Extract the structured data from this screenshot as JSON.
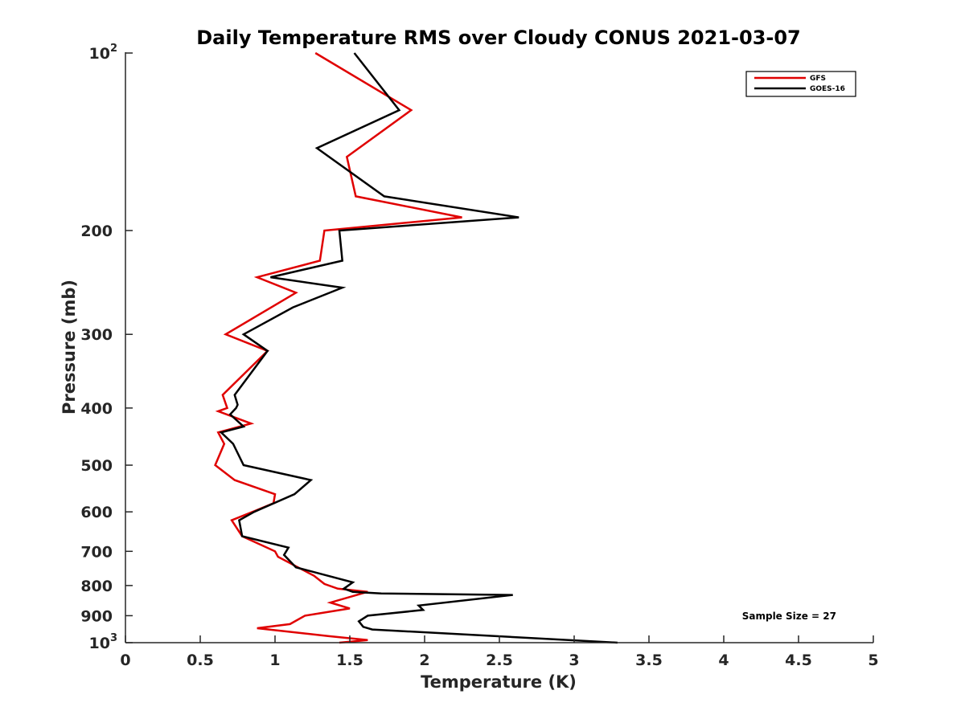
{
  "chart_data": {
    "type": "line",
    "title": "Daily Temperature RMS over Cloudy CONUS 2021-03-07",
    "xlabel": "Temperature (K)",
    "ylabel": "Pressure (mb)",
    "xlim": [
      0,
      5
    ],
    "ylim": [
      100,
      1000
    ],
    "y_scale": "log",
    "y_reversed": true,
    "grid": false,
    "legend_position": "top-right",
    "x_ticks": [
      "0",
      "0.5",
      "1",
      "1.5",
      "2",
      "2.5",
      "3",
      "3.5",
      "4",
      "4.5",
      "5"
    ],
    "y_ticks": [
      {
        "value": 100,
        "base": "10",
        "exp": "2"
      },
      {
        "value": 200,
        "label": "200"
      },
      {
        "value": 300,
        "label": "300"
      },
      {
        "value": 400,
        "label": "400"
      },
      {
        "value": 500,
        "label": "500"
      },
      {
        "value": 600,
        "label": "600"
      },
      {
        "value": 700,
        "label": "700"
      },
      {
        "value": 800,
        "label": "800"
      },
      {
        "value": 900,
        "label": "900"
      },
      {
        "value": 1000,
        "base": "10",
        "exp": "3"
      }
    ],
    "annotation": "Sample Size = 27",
    "series": [
      {
        "name": "GFS",
        "color": "#e00000",
        "points": [
          [
            1.27,
            100
          ],
          [
            1.91,
            125
          ],
          [
            1.48,
            150
          ],
          [
            1.54,
            175
          ],
          [
            2.25,
            190
          ],
          [
            1.33,
            200
          ],
          [
            1.3,
            225
          ],
          [
            0.88,
            240
          ],
          [
            1.14,
            255
          ],
          [
            0.67,
            300
          ],
          [
            0.95,
            320
          ],
          [
            0.65,
            380
          ],
          [
            0.68,
            400
          ],
          [
            0.62,
            405
          ],
          [
            0.84,
            425
          ],
          [
            0.62,
            440
          ],
          [
            0.66,
            460
          ],
          [
            0.6,
            500
          ],
          [
            0.73,
            530
          ],
          [
            1.0,
            560
          ],
          [
            0.99,
            580
          ],
          [
            0.85,
            600
          ],
          [
            0.71,
            620
          ],
          [
            0.78,
            660
          ],
          [
            1.0,
            700
          ],
          [
            1.02,
            715
          ],
          [
            1.26,
            770
          ],
          [
            1.33,
            795
          ],
          [
            1.42,
            810
          ],
          [
            1.62,
            820
          ],
          [
            1.37,
            855
          ],
          [
            1.5,
            875
          ],
          [
            1.2,
            900
          ],
          [
            1.1,
            930
          ],
          [
            0.88,
            945
          ],
          [
            1.36,
            975
          ],
          [
            1.62,
            990
          ],
          [
            1.43,
            1000
          ]
        ]
      },
      {
        "name": "GOES-16",
        "color": "#000000",
        "points": [
          [
            1.53,
            100
          ],
          [
            1.83,
            125
          ],
          [
            1.28,
            145
          ],
          [
            1.73,
            175
          ],
          [
            2.63,
            190
          ],
          [
            1.43,
            200
          ],
          [
            1.45,
            225
          ],
          [
            0.97,
            240
          ],
          [
            1.45,
            250
          ],
          [
            1.12,
            270
          ],
          [
            0.79,
            300
          ],
          [
            0.95,
            320
          ],
          [
            0.73,
            380
          ],
          [
            0.75,
            395
          ],
          [
            0.74,
            400
          ],
          [
            0.7,
            410
          ],
          [
            0.79,
            430
          ],
          [
            0.64,
            440
          ],
          [
            0.72,
            460
          ],
          [
            0.79,
            500
          ],
          [
            1.24,
            530
          ],
          [
            1.13,
            560
          ],
          [
            0.86,
            600
          ],
          [
            0.76,
            620
          ],
          [
            0.78,
            660
          ],
          [
            1.09,
            690
          ],
          [
            1.06,
            710
          ],
          [
            1.14,
            745
          ],
          [
            1.52,
            790
          ],
          [
            1.46,
            810
          ],
          [
            1.52,
            820
          ],
          [
            1.71,
            825
          ],
          [
            2.59,
            830
          ],
          [
            1.96,
            865
          ],
          [
            1.99,
            880
          ],
          [
            1.62,
            900
          ],
          [
            1.56,
            920
          ],
          [
            1.59,
            940
          ],
          [
            1.65,
            950
          ],
          [
            3.29,
            1000
          ]
        ]
      }
    ]
  }
}
